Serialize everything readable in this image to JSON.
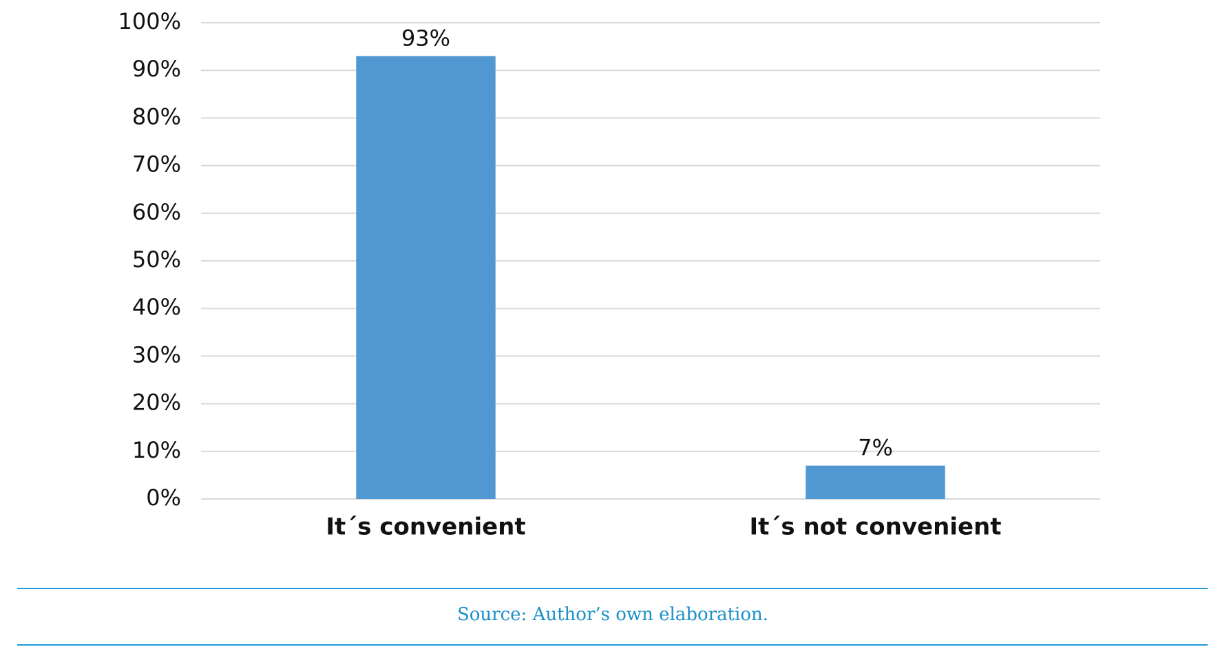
{
  "chart_data": {
    "type": "bar",
    "categories": [
      "It´s convenient",
      "It´s not convenient"
    ],
    "values": [
      93,
      7
    ],
    "value_labels": [
      "93%",
      "7%"
    ],
    "color": "#5198d3",
    "ylim": [
      0,
      100
    ],
    "yticks": [
      {
        "value": 0,
        "label": "0%"
      },
      {
        "value": 10,
        "label": "10%"
      },
      {
        "value": 20,
        "label": "20%"
      },
      {
        "value": 30,
        "label": "30%"
      },
      {
        "value": 40,
        "label": "40%"
      },
      {
        "value": 50,
        "label": "50%"
      },
      {
        "value": 60,
        "label": "60%"
      },
      {
        "value": 70,
        "label": "70%"
      },
      {
        "value": 80,
        "label": "80%"
      },
      {
        "value": 90,
        "label": "90%"
      },
      {
        "value": 100,
        "label": "100%"
      }
    ],
    "grid": true,
    "source": "Source: Author’s own elaboration."
  }
}
